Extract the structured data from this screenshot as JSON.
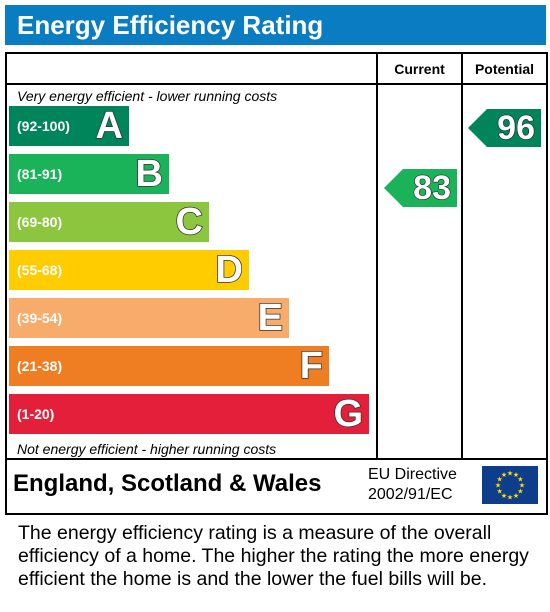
{
  "title": "Energy Efficiency Rating",
  "columns": {
    "current": "Current",
    "potential": "Potential"
  },
  "top_note": "Very energy efficient - lower running costs",
  "bottom_note": "Not energy efficient - higher running costs",
  "bands": [
    {
      "range": "(92-100)",
      "letter": "A",
      "color": "#00855a"
    },
    {
      "range": "(81-91)",
      "letter": "B",
      "color": "#1bb35a"
    },
    {
      "range": "(69-80)",
      "letter": "C",
      "color": "#8cc63f"
    },
    {
      "range": "(55-68)",
      "letter": "D",
      "color": "#ffcc00"
    },
    {
      "range": "(39-54)",
      "letter": "E",
      "color": "#f7ac6b"
    },
    {
      "range": "(21-38)",
      "letter": "F",
      "color": "#ef7d22"
    },
    {
      "range": "(1-20)",
      "letter": "G",
      "color": "#e41f3a"
    }
  ],
  "current": {
    "value": "83",
    "band": "B",
    "color": "#1bb35a"
  },
  "potential": {
    "value": "96",
    "band": "A",
    "color": "#00855a"
  },
  "footer": {
    "country": "England, Scotland & Wales",
    "directive_line1": "EU Directive",
    "directive_line2": "2002/91/EC",
    "flag_icon": "eu-flag-icon"
  },
  "description": "The energy efficiency rating is a measure of the overall efficiency of a home. The higher the rating the more energy efficient the home is and the lower the fuel bills will be."
}
